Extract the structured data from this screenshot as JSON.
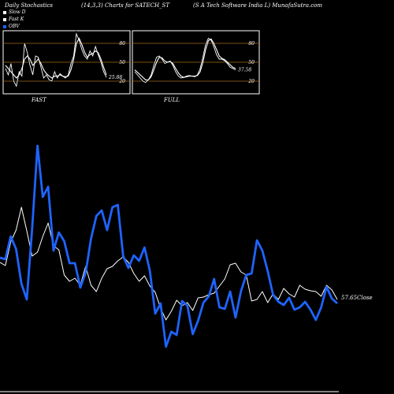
{
  "header": {
    "left": "Daily Stochastics",
    "middle": "(14,3,3) Charts for SATECH_ST",
    "right": "(S A Tech Software  India  L) MunafaSutra.com"
  },
  "legend": [
    {
      "label": "Slow  D",
      "color": "#ffffff"
    },
    {
      "label": "Fast K",
      "color": "#ffffff"
    },
    {
      "label": "OBV",
      "color": "#1e64ff"
    }
  ],
  "chart_data": [
    {
      "type": "line",
      "title": "FAST",
      "yticks": [
        80,
        50,
        20
      ],
      "ylim": [
        0,
        100
      ],
      "end_label": "25.88",
      "grid": "horizontal reference lines at 80, 50, 20",
      "series": [
        {
          "values": [
            40,
            30,
            48,
            20,
            12,
            35,
            28,
            80,
            65,
            45,
            30,
            60,
            58,
            42,
            25,
            30,
            22,
            20,
            35,
            25,
            32,
            28,
            25,
            30,
            48,
            60,
            95,
            85,
            70,
            60,
            55,
            68,
            60,
            75,
            62,
            50,
            35,
            26
          ]
        },
        {
          "values": [
            45,
            40,
            35,
            30,
            25,
            30,
            40,
            55,
            60,
            55,
            45,
            50,
            55,
            48,
            38,
            32,
            28,
            25,
            28,
            28,
            30,
            28,
            27,
            28,
            38,
            55,
            80,
            88,
            78,
            66,
            58,
            62,
            64,
            68,
            65,
            55,
            42,
            30
          ]
        }
      ]
    },
    {
      "type": "line",
      "title": "FULL",
      "yticks": [
        80,
        50,
        20
      ],
      "ylim": [
        0,
        100
      ],
      "end_label": "37.58",
      "grid": "horizontal reference lines at 80, 50, 20",
      "series": [
        {
          "values": [
            35,
            30,
            25,
            20,
            18,
            22,
            30,
            45,
            58,
            60,
            55,
            48,
            50,
            52,
            45,
            35,
            28,
            25,
            26,
            28,
            29,
            28,
            27,
            30,
            40,
            58,
            78,
            88,
            85,
            75,
            62,
            55,
            55,
            52,
            48,
            42,
            40,
            38
          ]
        },
        {
          "values": [
            38,
            34,
            30,
            26,
            22,
            22,
            27,
            38,
            50,
            58,
            57,
            52,
            50,
            51,
            48,
            40,
            33,
            28,
            26,
            27,
            28,
            28,
            28,
            29,
            35,
            50,
            70,
            84,
            87,
            80,
            70,
            60,
            56,
            54,
            50,
            46,
            42,
            40
          ]
        }
      ]
    },
    {
      "type": "line",
      "title": "",
      "end_label": "57.65Close",
      "series": [
        {
          "name": "Close",
          "color": "#ffffff",
          "values": [
            333,
            337,
            307,
            292,
            263,
            293,
            325,
            320,
            300,
            283,
            312,
            317,
            349,
            357,
            353,
            362,
            338,
            362,
            370,
            353,
            341,
            338,
            331,
            326,
            333,
            347,
            357,
            350,
            363,
            371,
            391,
            406,
            395,
            381,
            388,
            384,
            394,
            378,
            377,
            374,
            372,
            363,
            354,
            336,
            334,
            345,
            349,
            382,
            380,
            370,
            384,
            373,
            380,
            366,
            373,
            377,
            362,
            367,
            369,
            370,
            376,
            362,
            368,
            380
          ]
        },
        {
          "name": "OBV",
          "color": "#1e64ff",
          "values": [
            327,
            329,
            300,
            316,
            360,
            380,
            290,
            185,
            250,
            237,
            318,
            295,
            306,
            334,
            334,
            365,
            346,
            303,
            274,
            267,
            292,
            263,
            260,
            325,
            340,
            324,
            331,
            314,
            344,
            398,
            385,
            440,
            421,
            425,
            382,
            388,
            424,
            407,
            384,
            376,
            354,
            390,
            392,
            370,
            403,
            370,
            349,
            347,
            305,
            318,
            344,
            374,
            383,
            387,
            378,
            393,
            390,
            383,
            393,
            406,
            390,
            364,
            379,
            385
          ]
        }
      ]
    }
  ]
}
